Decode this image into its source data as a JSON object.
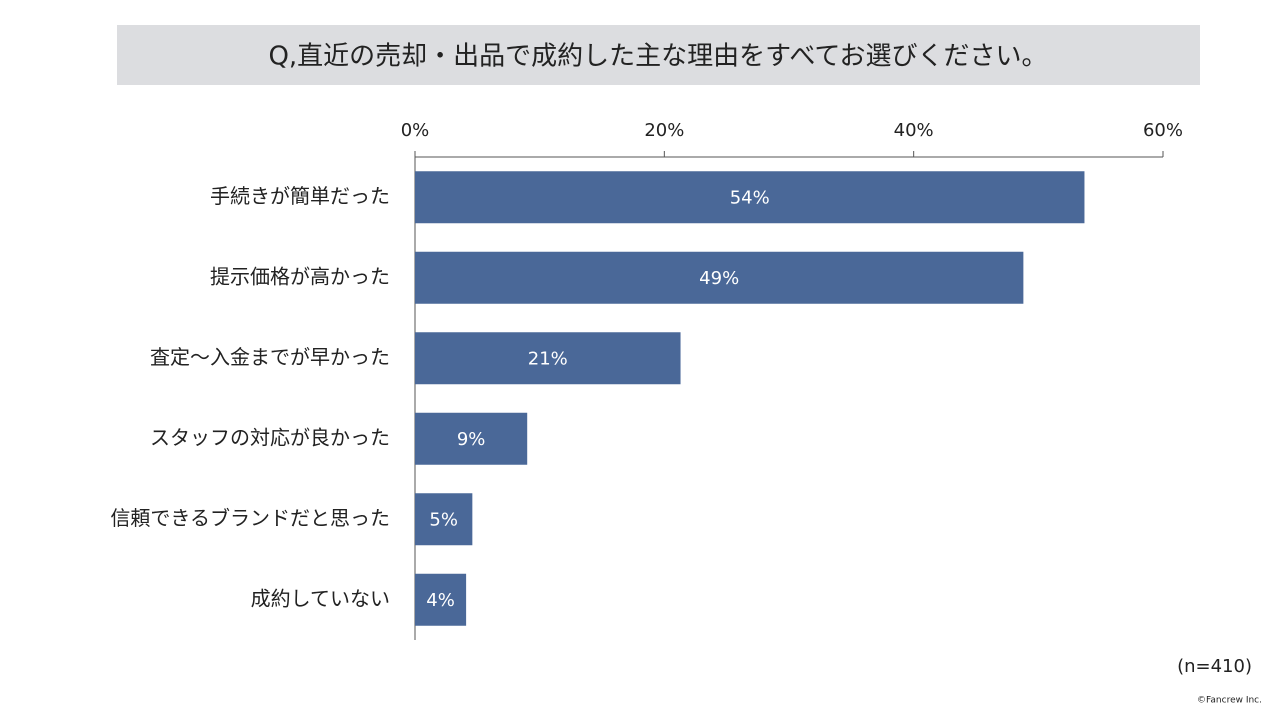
{
  "chart_data": {
    "type": "barh",
    "title": "Q,直近の売却・出品で成約した主な理由をすべてお選びください。",
    "categories": [
      "手続きが簡単だった",
      "提示価格が高かった",
      "査定～入金までが早かった",
      "スタッフの対応が良かった",
      "信頼できるブランドだと思った",
      "成約していない"
    ],
    "values": [
      53.7,
      48.8,
      21.3,
      9.0,
      4.6,
      4.1
    ],
    "value_labels": [
      "54%",
      "49%",
      "21%",
      "9%",
      "5%",
      "4%"
    ],
    "color": "#4a6898",
    "xlim": [
      0,
      60
    ],
    "xticks": [
      {
        "value": 0,
        "label": "0%"
      },
      {
        "value": 20,
        "label": "20%"
      },
      {
        "value": 40,
        "label": "40%"
      },
      {
        "value": 60,
        "label": "60%"
      }
    ],
    "sample_note": "(n=410)",
    "credit": "©Fancrew Inc."
  }
}
